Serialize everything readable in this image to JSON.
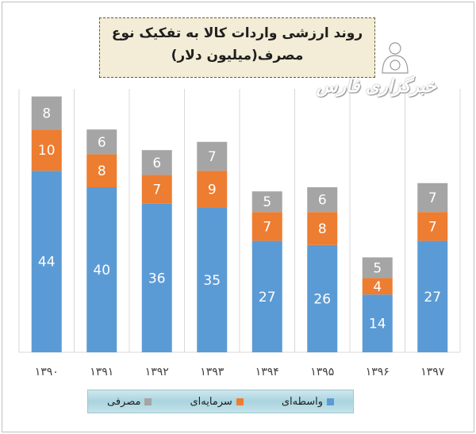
{
  "chart_data": {
    "type": "bar",
    "stacked": true,
    "title": "روند ارزشی واردات کالا به تفکیک نوع",
    "subtitle": "مصرف(میلیون دلار)",
    "categories": [
      "۱۳۹۰",
      "۱۳۹۱",
      "۱۳۹۲",
      "۱۳۹۳",
      "۱۳۹۴",
      "۱۳۹۵",
      "۱۳۹۶",
      "۱۳۹۷"
    ],
    "series": [
      {
        "name": "واسطه‌ای",
        "color": "#5b9bd5",
        "values": [
          44,
          40,
          36,
          35,
          27,
          26,
          14,
          27
        ]
      },
      {
        "name": "سرمایه‌ای",
        "color": "#ed7d31",
        "values": [
          10,
          8,
          7,
          9,
          7,
          8,
          4,
          7
        ]
      },
      {
        "name": "مصرفی",
        "color": "#a5a5a5",
        "values": [
          8,
          6,
          6,
          7,
          5,
          6,
          5,
          7
        ]
      }
    ],
    "ylim": [
      0,
      70
    ],
    "grid": "vertical-dividers",
    "legend": "bottom",
    "data_labels": true
  },
  "logo": {
    "text": "خبرگزاری فارس"
  }
}
